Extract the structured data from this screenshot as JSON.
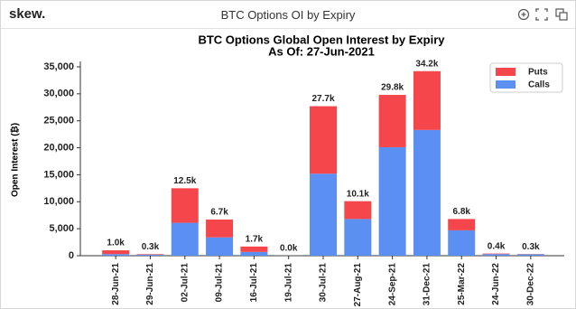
{
  "header": {
    "logo": "skew.",
    "title": "BTC Options OI by Expiry"
  },
  "chart_data": {
    "type": "stacked-bar",
    "title": "BTC Options Global Open Interest by Expiry",
    "subtitle": "As Of: 27-Jun-2021",
    "y_label": "Open Interest (₿)",
    "categories": [
      "28-Jun-21",
      "29-Jun-21",
      "02-Jul-21",
      "09-Jul-21",
      "16-Jul-21",
      "19-Jul-21",
      "30-Jul-21",
      "27-Aug-21",
      "24-Sep-21",
      "31-Dec-21",
      "25-Mar-22",
      "24-Jun-22",
      "30-Dec-22"
    ],
    "series": [
      {
        "name": "Puts",
        "color": "#f5474b",
        "values": [
          700,
          100,
          6400,
          3300,
          1000,
          10,
          12500,
          3300,
          9700,
          10900,
          2100,
          100,
          50
        ]
      },
      {
        "name": "Calls",
        "color": "#5b8ff2",
        "values": [
          300,
          200,
          6100,
          3400,
          700,
          20,
          15200,
          6800,
          20100,
          23300,
          4700,
          300,
          250
        ]
      }
    ],
    "totals": {
      "values": [
        1000,
        300,
        12500,
        6700,
        1700,
        30,
        27700,
        10100,
        29800,
        34200,
        6800,
        400,
        300
      ],
      "value_labels": [
        "1.0k",
        "0.3k",
        "12.5k",
        "6.7k",
        "1.7k",
        "0.0k",
        "27.7k",
        "10.1k",
        "29.8k",
        "34.2k",
        "6.8k",
        "0.4k",
        "0.3k"
      ]
    },
    "ylim": [
      0,
      36000
    ],
    "yticks": [
      0,
      {
        "value": 5000,
        "label": "5,000"
      },
      {
        "value": 10000,
        "label": "10,000"
      },
      {
        "value": 15000,
        "label": "15,000"
      },
      {
        "value": 20000,
        "label": "20,000"
      },
      {
        "value": 25000,
        "label": "25,000"
      },
      {
        "value": 30000,
        "label": "30,000"
      },
      {
        "value": 35000,
        "label": "35,000"
      }
    ],
    "legend": "top-right"
  }
}
